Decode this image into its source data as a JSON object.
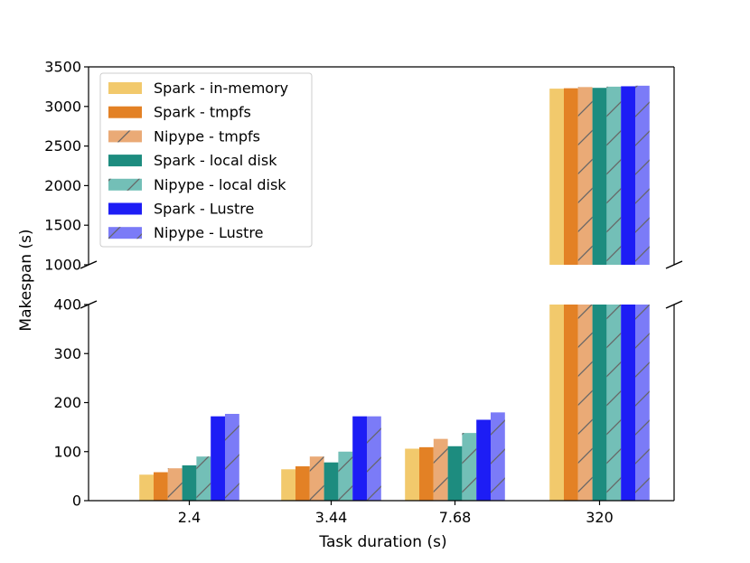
{
  "chart_data": {
    "type": "bar",
    "broken_axis": true,
    "xlabel": "Task duration (s)",
    "ylabel": "Makespan (s)",
    "categories": [
      "2.4",
      "3.44",
      "7.68",
      "320"
    ],
    "upper_panel": {
      "ylim": [
        1000,
        3500
      ],
      "yticks": [
        "1000",
        "1500",
        "2000",
        "2500",
        "3000",
        "3500"
      ]
    },
    "lower_panel": {
      "ylim": [
        0,
        400
      ],
      "yticks": [
        "0",
        "100",
        "200",
        "300",
        "400"
      ]
    },
    "series": [
      {
        "name": "Spark - in-memory",
        "color": "#f2c96c",
        "hatch": false,
        "values": [
          53,
          64,
          106,
          3225
        ]
      },
      {
        "name": "Spark - tmpfs",
        "color": "#e38125",
        "hatch": false,
        "values": [
          58,
          70,
          109,
          3230
        ]
      },
      {
        "name": "Nipype - tmpfs",
        "color": "#eaaa76",
        "hatch": true,
        "values": [
          66,
          90,
          126,
          3245
        ]
      },
      {
        "name": "Spark - local disk",
        "color": "#1d8c7f",
        "hatch": false,
        "values": [
          72,
          78,
          111,
          3235
        ]
      },
      {
        "name": "Nipype - local disk",
        "color": "#73bfb7",
        "hatch": true,
        "values": [
          90,
          100,
          138,
          3250
        ]
      },
      {
        "name": "Spark - Lustre",
        "color": "#1d1df5",
        "hatch": false,
        "values": [
          172,
          172,
          165,
          3255
        ]
      },
      {
        "name": "Nipype - Lustre",
        "color": "#7b7bf7",
        "hatch": true,
        "values": [
          177,
          172,
          180,
          3262
        ]
      }
    ]
  }
}
